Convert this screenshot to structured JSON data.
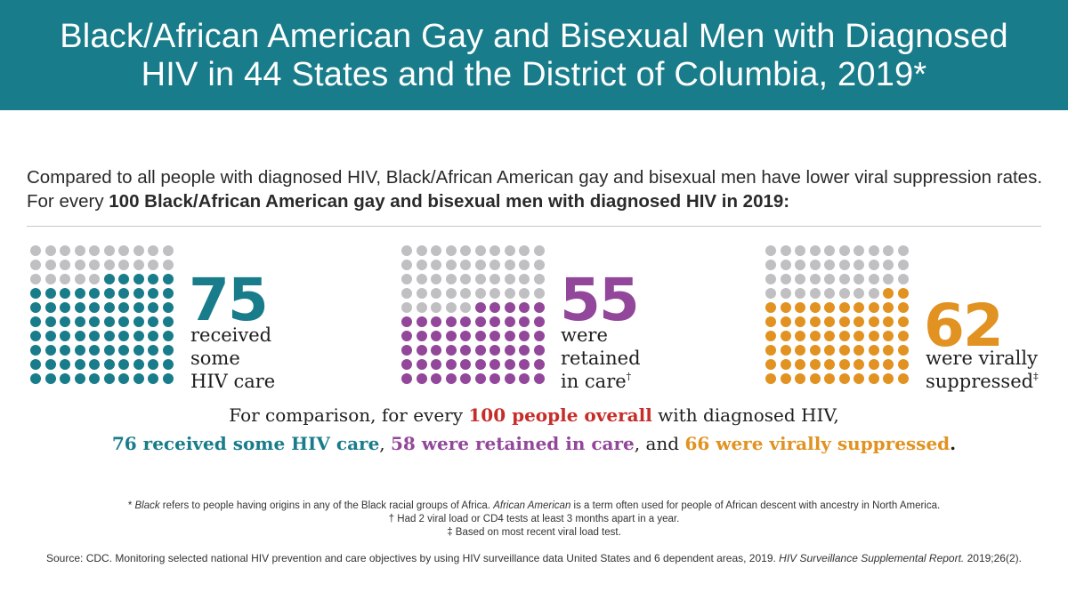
{
  "header": {
    "title_line1": "Black/African American Gay and Bisexual Men with Diagnosed",
    "title_line2": "HIV in 44 States and the District of Columbia, 2019*"
  },
  "intro": {
    "text_plain": "Compared to all people with diagnosed HIV, Black/African American gay and bisexual men have lower viral suppression rates. For every ",
    "text_bold": "100 Black/African American gay and bisexual men with diagnosed HIV in 2019:"
  },
  "colors": {
    "teal": "#187c8a",
    "purple": "#92479a",
    "orange": "#e19221",
    "gray_dot": "#c0c0c3",
    "red": "#c62d28"
  },
  "stats": [
    {
      "value": "75",
      "label": "received\nsome\nHIV care",
      "sup": ""
    },
    {
      "value": "55",
      "label": "were\nretained\nin care",
      "sup": "†"
    },
    {
      "value": "62",
      "label": "were virally\nsuppressed",
      "sup": "‡"
    }
  ],
  "chart_data": {
    "type": "waffle",
    "total": 100,
    "series": [
      {
        "name": "received some HIV care",
        "value": 75,
        "color": "#187c8a"
      },
      {
        "name": "were retained in care",
        "value": 55,
        "color": "#92479a"
      },
      {
        "name": "were virally suppressed",
        "value": 62,
        "color": "#e19221"
      }
    ],
    "comparison": [
      {
        "name": "received some HIV care",
        "value": 76
      },
      {
        "name": "were retained in care",
        "value": 58
      },
      {
        "name": "were virally suppressed",
        "value": 66
      }
    ]
  },
  "comparison": {
    "line1_pre": "For comparison, for every ",
    "line1_red": "100 people overall",
    "line1_post": " with diagnosed HIV,",
    "teal": "76 received some HIV care",
    "sep1": ", ",
    "purple": "58 were retained in care",
    "sep2": ", and ",
    "orange": "66 were virally suppressed",
    "end": "."
  },
  "footnotes": {
    "star_mark": "* ",
    "star_black": "Black",
    "star_mid": " refers to people having origins in any of the Black racial groups of Africa. ",
    "star_aa": "African American",
    "star_end": " is a term often used for people of African descent with ancestry in North America.",
    "dagger": "† Had 2 viral load or CD4 tests at least 3 months apart in a year.",
    "ddagger": "‡ Based on most recent viral load test."
  },
  "source": {
    "text": "Source: CDC. Monitoring selected national HIV prevention and care objectives by using HIV surveillance data United States and 6 dependent areas, 2019.  ",
    "journal": "HIV Surveillance Supplemental Report.",
    "citation": " 2019;26(2)."
  }
}
